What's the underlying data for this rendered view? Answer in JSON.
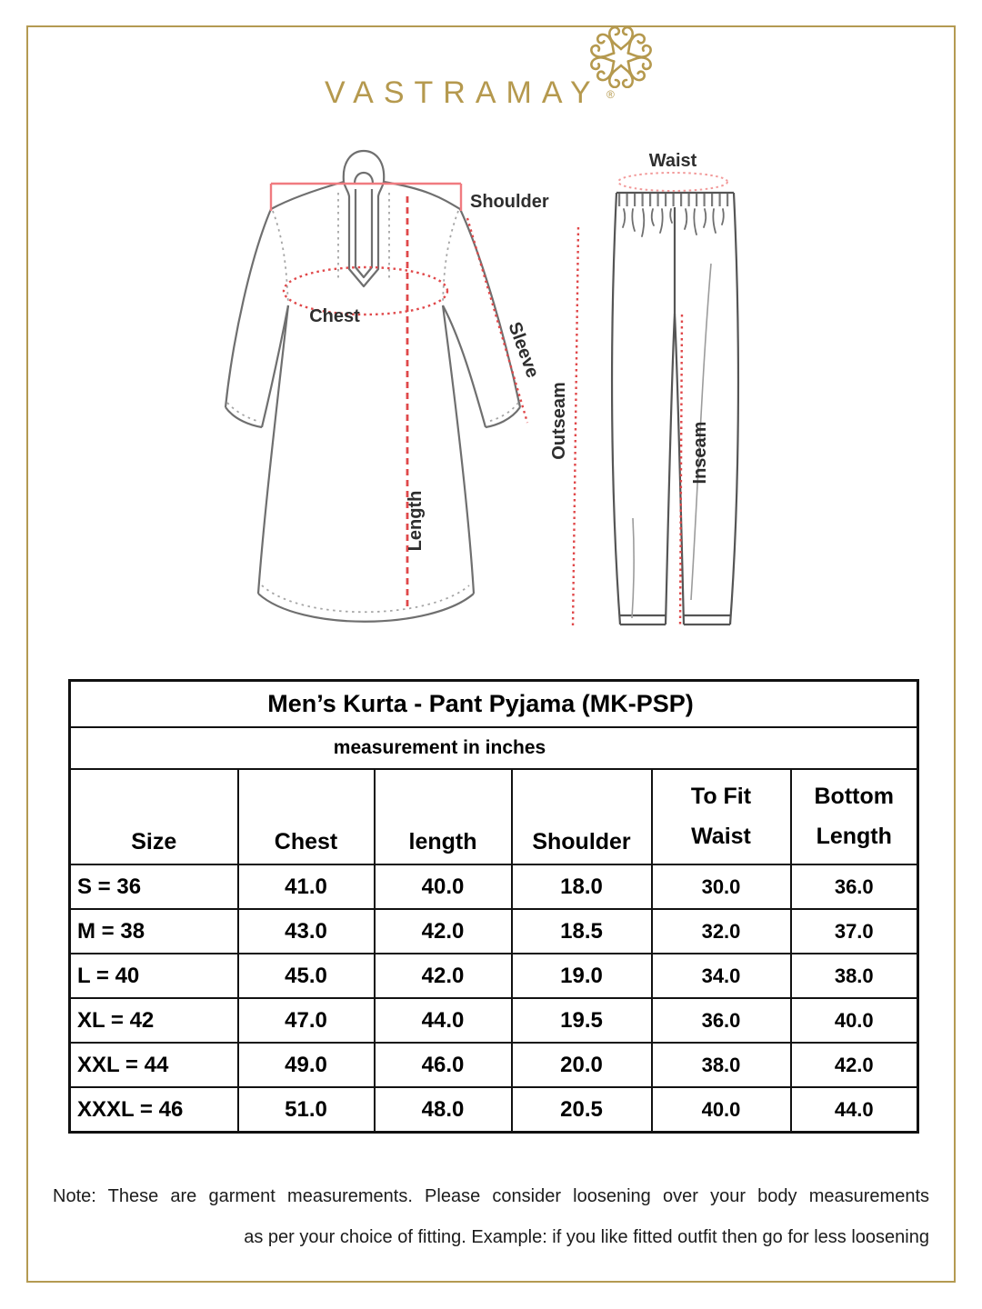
{
  "page": {
    "border_color": "#b49a52",
    "background_color": "#ffffff"
  },
  "brand": {
    "name": "VASTRAMAY",
    "registered_mark": "®",
    "logo_color": "#b5994e",
    "logo_icon": "mandala-flower-icon"
  },
  "size_guide_diagram": {
    "kurta_labels": {
      "shoulder": "Shoulder",
      "chest": "Chest",
      "sleeve": "Sleeve",
      "length": "Length"
    },
    "pyjama_labels": {
      "waist": "Waist",
      "outseam": "Outseam",
      "inseam": "Inseam"
    },
    "garment_line_color": "#6f6f6f",
    "measure_line_color": "#e0484a",
    "shoulder_line_color": "#f07b80"
  },
  "size_chart": {
    "title": "Men’s Kurta - Pant Pyjama (MK-PSP)",
    "subtitle": "measurement in inches",
    "columns": [
      "Size",
      "Chest",
      "length",
      "Shoulder",
      "To Fit Waist",
      "Bottom Length"
    ],
    "rows": [
      [
        "S = 36",
        "41.0",
        "40.0",
        "18.0",
        "30.0",
        "36.0"
      ],
      [
        "M = 38",
        "43.0",
        "42.0",
        "18.5",
        "32.0",
        "37.0"
      ],
      [
        "L = 40",
        "45.0",
        "42.0",
        "19.0",
        "34.0",
        "38.0"
      ],
      [
        "XL = 42",
        "47.0",
        "44.0",
        "19.5",
        "36.0",
        "40.0"
      ],
      [
        "XXL = 44",
        "49.0",
        "46.0",
        "20.0",
        "38.0",
        "42.0"
      ],
      [
        "XXXL = 46",
        "51.0",
        "48.0",
        "20.5",
        "40.0",
        "44.0"
      ]
    ]
  },
  "note": {
    "line1": "Note: These are garment measurements. Please consider loosening over your body measurements",
    "line2": "as per your choice of fitting. Example: if you like fitted outfit then go for less loosening"
  }
}
